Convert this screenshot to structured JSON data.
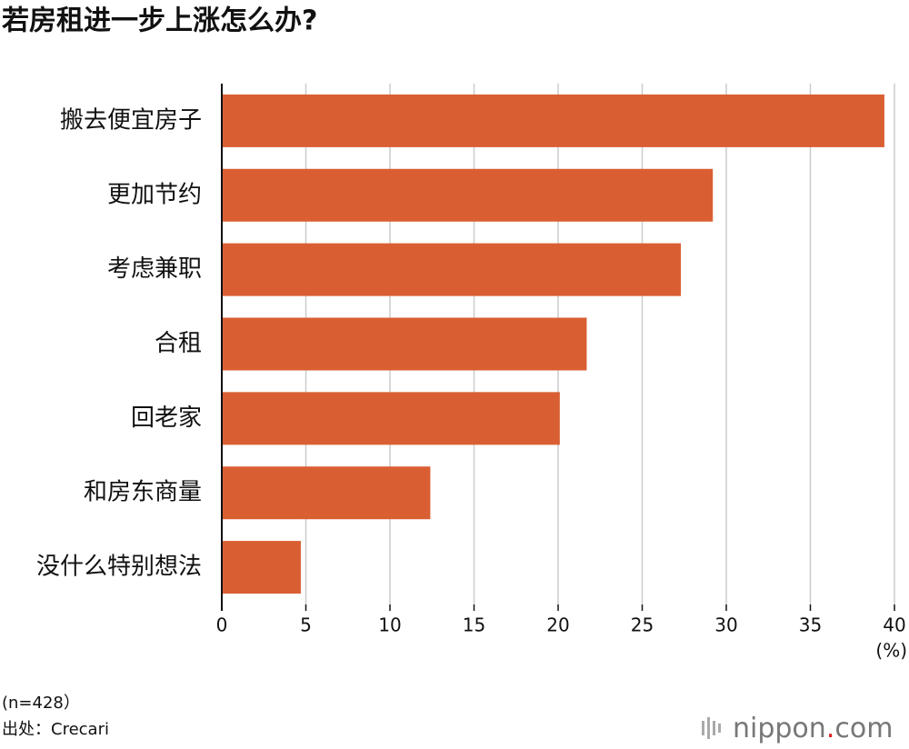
{
  "chart_data": {
    "type": "barh",
    "title": "若房租进一步上涨怎么办?",
    "categories": [
      "搬去便宜房子",
      "更加节约",
      "考虑兼职",
      "合租",
      "回老家",
      "和房东商量",
      "没什么特别想法"
    ],
    "values": [
      39.4,
      29.2,
      27.3,
      21.7,
      20.1,
      12.4,
      4.7
    ],
    "color": "#d95f33",
    "xlim": [
      0,
      40
    ],
    "xticks": [
      0,
      5,
      10,
      15,
      20,
      25,
      30,
      35,
      40
    ],
    "grid": true,
    "x_label": "(%)",
    "note": "(n=428）",
    "source": "出处：Crecari",
    "logo": [
      "nippon",
      ".",
      "com"
    ]
  }
}
